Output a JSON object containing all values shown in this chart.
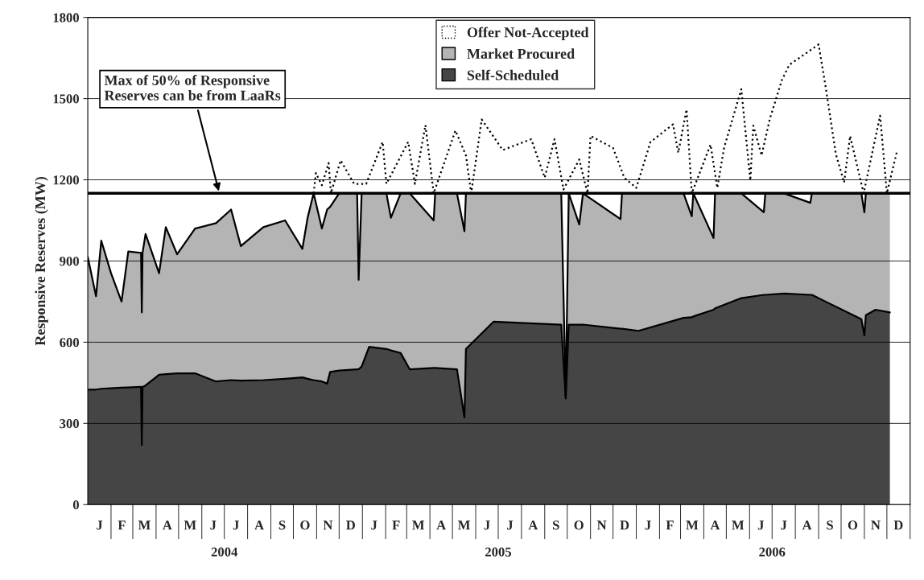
{
  "chart_data": {
    "type": "area",
    "stacked": true,
    "ylabel": "Responsive Reserves (MW)",
    "x": [
      "2004-01-01",
      "2004-01-12",
      "2004-01-19",
      "2004-02-01",
      "2004-02-15",
      "2004-02-24",
      "2004-03-12",
      "2004-03-13",
      "2004-03-14",
      "2004-03-18",
      "2004-04-05",
      "2004-04-14",
      "2004-04-29",
      "2004-05-23",
      "2004-06-20",
      "2004-07-10",
      "2004-07-23",
      "2004-08-22",
      "2004-09-20",
      "2004-10-13",
      "2004-10-20",
      "2004-10-28",
      "2004-11-08",
      "2004-11-15",
      "2004-11-19",
      "2004-12-01",
      "2004-12-25",
      "2004-12-27",
      "2004-12-31",
      "2005-01-10",
      "2005-02-02",
      "2005-02-08",
      "2005-02-21",
      "2005-03-05",
      "2005-04-06",
      "2005-04-08",
      "2005-05-07",
      "2005-05-17",
      "2005-05-19",
      "2005-06-25",
      "2005-09-23",
      "2005-09-29",
      "2005-10-03",
      "2005-10-17",
      "2005-10-22",
      "2005-12-11",
      "2005-12-13",
      "2006-01-04",
      "2006-03-05",
      "2006-03-16",
      "2006-03-18",
      "2006-04-14",
      "2006-04-16",
      "2006-05-21",
      "2006-06-20",
      "2006-06-22",
      "2006-07-17",
      "2006-08-21",
      "2006-08-23",
      "2006-10-28",
      "2006-11-01",
      "2006-11-03",
      "2006-11-16",
      "2006-12-05"
    ],
    "series": [
      {
        "name": "Self-Scheduled",
        "color": "#454545",
        "values": [
          425,
          425,
          428,
          430,
          432,
          433,
          435,
          220,
          435,
          440,
          480,
          482,
          485,
          485,
          455,
          460,
          458,
          460,
          465,
          470,
          465,
          460,
          455,
          447,
          490,
          495,
          500,
          500,
          510,
          583,
          575,
          570,
          560,
          500,
          505,
          505,
          500,
          322,
          575,
          676,
          665,
          392,
          665,
          665,
          665,
          650,
          650,
          642,
          690,
          692,
          695,
          720,
          725,
          763,
          775,
          775,
          780,
          775,
          775,
          685,
          625,
          700,
          720,
          710
        ]
      },
      {
        "name": "Market Procured",
        "color": "#b4b4b4",
        "values": [
          490,
          345,
          547,
          425,
          318,
          502,
          495,
          490,
          495,
          560,
          375,
          543,
          440,
          535,
          585,
          630,
          497,
          565,
          585,
          475,
          595,
          690,
          565,
          643,
          610,
          655,
          650,
          330,
          640,
          567,
          575,
          490,
          590,
          650,
          545,
          645,
          650,
          688,
          575,
          474,
          485,
          8,
          485,
          370,
          485,
          405,
          500,
          508,
          460,
          373,
          455,
          265,
          425,
          387,
          305,
          375,
          370,
          340,
          375,
          465,
          455,
          450,
          430,
          440
        ]
      },
      {
        "name": "Offer Not-Accepted",
        "type": "line",
        "line_style": "dotted",
        "color": "#000000",
        "x": [
          "2004-10-28",
          "2004-10-31",
          "2004-11-08",
          "2004-11-17",
          "2004-11-20",
          "2004-12-03",
          "2004-12-21",
          "2005-01-06",
          "2005-01-28",
          "2005-02-02",
          "2005-03-03",
          "2005-03-12",
          "2005-03-26",
          "2005-04-06",
          "2005-05-05",
          "2005-05-19",
          "2005-05-26",
          "2005-06-09",
          "2005-07-07",
          "2005-08-14",
          "2005-09-01",
          "2005-09-14",
          "2005-09-26",
          "2005-10-17",
          "2005-10-28",
          "2005-11-01",
          "2005-12-01",
          "2005-12-16",
          "2006-01-01",
          "2006-01-20",
          "2006-02-19",
          "2006-02-26",
          "2006-03-09",
          "2006-03-16",
          "2006-04-10",
          "2006-04-19",
          "2006-04-28",
          "2006-05-21",
          "2006-06-02",
          "2006-06-06",
          "2006-06-17",
          "2006-06-28",
          "2006-07-14",
          "2006-07-24",
          "2006-08-15",
          "2006-09-01",
          "2006-09-10",
          "2006-09-24",
          "2006-10-05",
          "2006-10-13",
          "2006-10-31",
          "2006-11-22",
          "2006-12-01",
          "2006-12-14"
        ],
        "values": [
          1150,
          1225,
          1180,
          1262,
          1150,
          1272,
          1185,
          1185,
          1340,
          1185,
          1340,
          1185,
          1402,
          1150,
          1382,
          1290,
          1150,
          1423,
          1310,
          1350,
          1208,
          1350,
          1164,
          1275,
          1150,
          1362,
          1318,
          1208,
          1170,
          1340,
          1405,
          1300,
          1460,
          1150,
          1330,
          1170,
          1318,
          1535,
          1198,
          1400,
          1290,
          1425,
          1568,
          1625,
          1667,
          1700,
          1550,
          1295,
          1190,
          1362,
          1150,
          1437,
          1150,
          1300
        ]
      }
    ],
    "ylim": [
      0,
      1800
    ],
    "yticks": [
      0,
      300,
      600,
      900,
      1200,
      1500,
      1800
    ],
    "xlim": [
      "2004-01-01",
      "2007-01-01"
    ],
    "xticks": [
      {
        "value": "2004-07-01",
        "label": "2004"
      },
      {
        "value": "2005-07-01",
        "label": "2005"
      },
      {
        "value": "2006-07-01",
        "label": "2006"
      }
    ],
    "annotations": [
      "J",
      "F",
      "M",
      "A",
      "M",
      "J",
      "J",
      "A",
      "S",
      "O",
      "N",
      "D",
      "J",
      "F",
      "M",
      "A",
      "M",
      "J",
      "J",
      "A",
      "S",
      "O",
      "N",
      "D",
      "J",
      "F",
      "M",
      "A",
      "M",
      "J",
      "J",
      "A",
      "S",
      "O",
      "N",
      "D"
    ],
    "ref_lines": [
      {
        "axis": "y",
        "value": 1150,
        "label": "Max of 50% of Responsive\nReserves can be from LaaRs",
        "color": "#000000"
      }
    ],
    "grid": "y",
    "legend": "top"
  }
}
